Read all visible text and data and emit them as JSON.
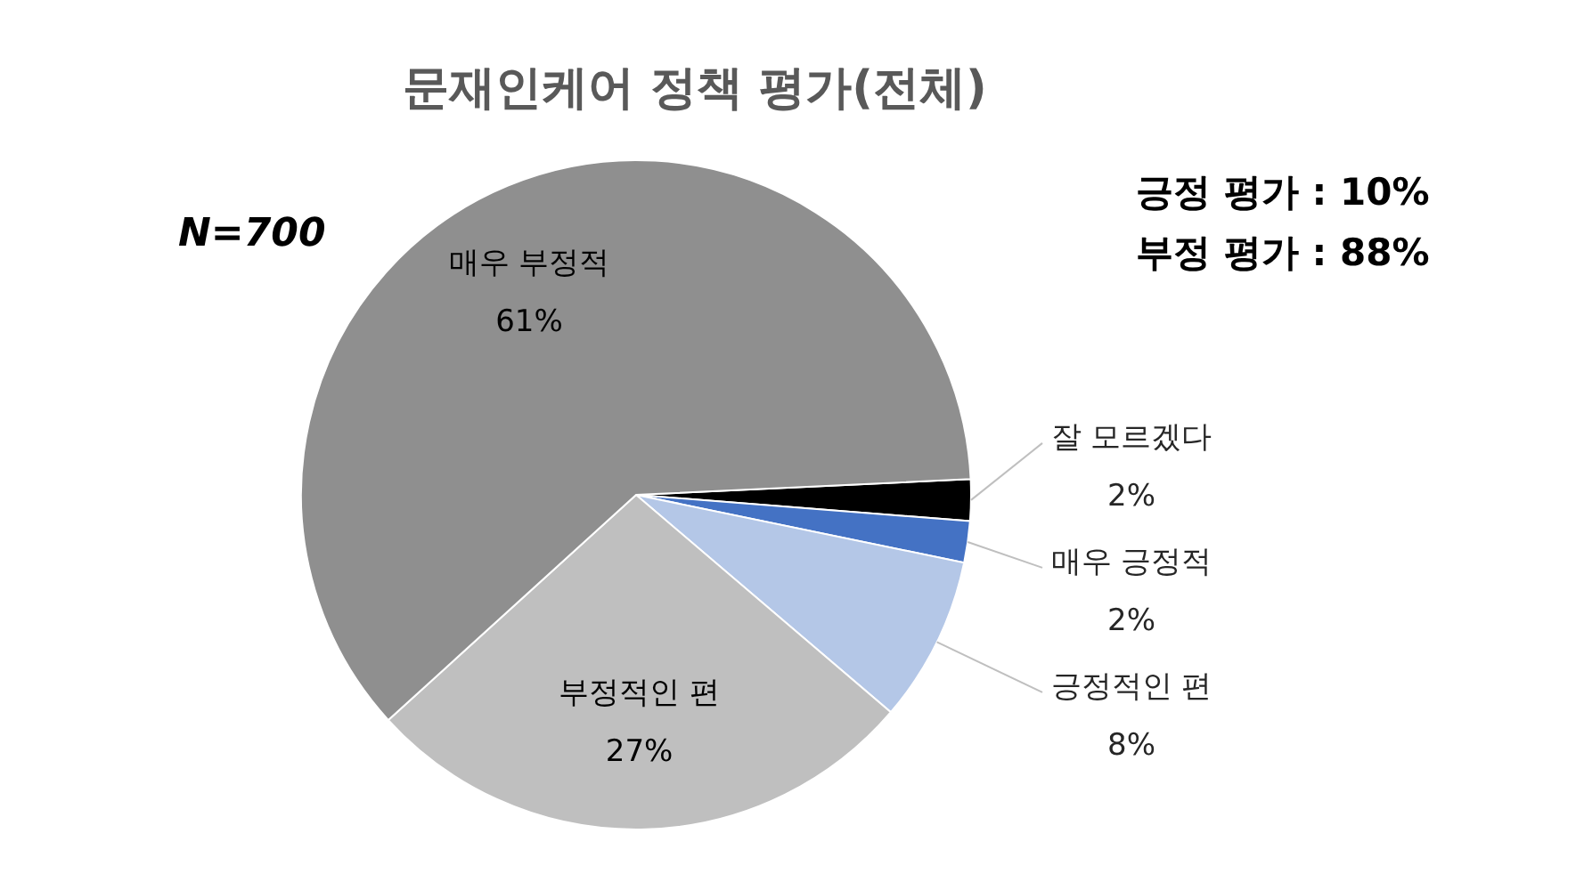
{
  "chart_data": {
    "type": "pie",
    "title": "문재인케어 정책 평가(전체)",
    "categories": [
      "잘 모르겠다",
      "매우 긍정적",
      "긍정적인 편",
      "부정적인 편",
      "매우 부정적"
    ],
    "values": [
      2,
      2,
      8,
      27,
      61
    ],
    "colors": [
      "#000000",
      "#4472c4",
      "#b4c7e7",
      "#bfbfbf",
      "#8f8f8f"
    ],
    "value_labels": [
      "2%",
      "2%",
      "8%",
      "27%",
      "61%"
    ],
    "annotations": [
      "N=700",
      "긍정 평가 : 10%",
      "부정 평가 : 88%"
    ]
  }
}
